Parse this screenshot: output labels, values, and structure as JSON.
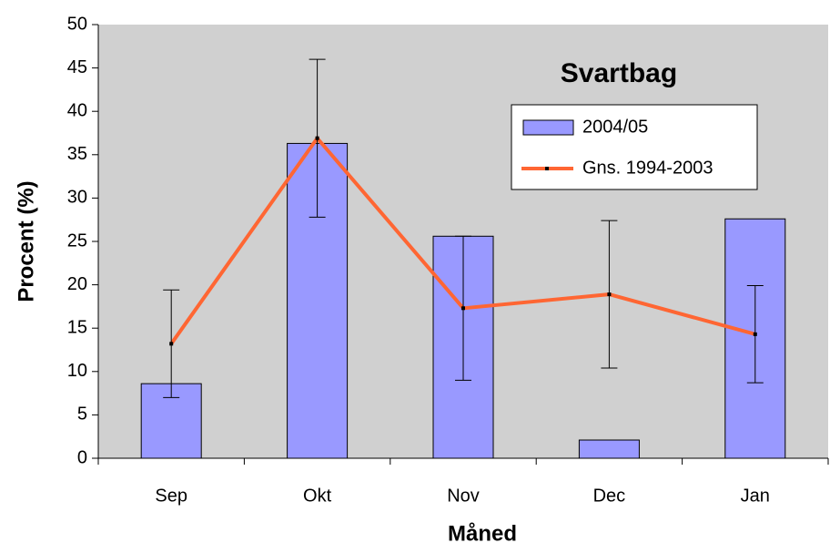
{
  "chart_data": {
    "type": "bar",
    "title": "Svartbag",
    "xlabel": "Måned",
    "ylabel": "Procent (%)",
    "categories": [
      "Sep",
      "Okt",
      "Nov",
      "Dec",
      "Jan"
    ],
    "series": [
      {
        "name": "2004/05",
        "type": "bar",
        "color": "#9999ff",
        "values": [
          8.6,
          36.3,
          25.6,
          2.1,
          27.6
        ]
      },
      {
        "name": "Gns. 1994-2003",
        "type": "line",
        "color": "#ff6633",
        "values": [
          13.2,
          36.9,
          17.3,
          18.9,
          14.3
        ],
        "errors": [
          6.2,
          9.1,
          8.3,
          8.5,
          5.6
        ]
      }
    ],
    "ylim": [
      0,
      50
    ],
    "yticks": [
      0,
      5,
      10,
      15,
      20,
      25,
      30,
      35,
      40,
      45,
      50
    ]
  }
}
